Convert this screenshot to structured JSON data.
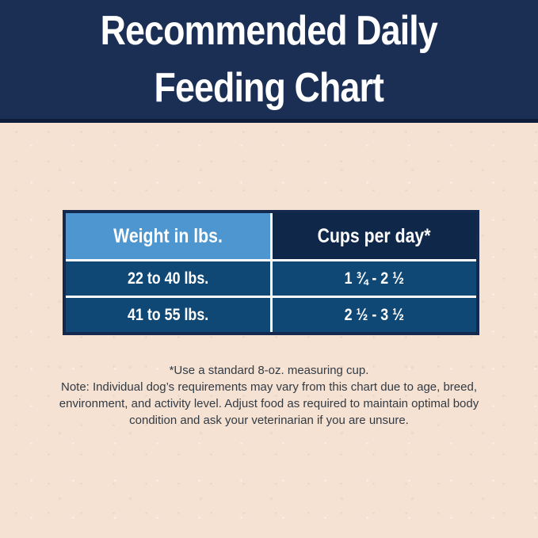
{
  "header": {
    "title_line1": "Recommended Daily",
    "title_line2": "Feeding Chart"
  },
  "chart_data": {
    "type": "table",
    "title": "Recommended Daily Feeding Chart",
    "columns": [
      "Weight in lbs.",
      "Cups per day*"
    ],
    "rows": [
      [
        "22 to 40 lbs.",
        "1 ¾ - 2 ½"
      ],
      [
        "41 to 55 lbs.",
        "2 ½ - 3 ½"
      ]
    ],
    "footnote": "*Use a standard 8-oz. measuring cup."
  },
  "notes": {
    "footnote": "*Use a standard 8-oz. measuring cup.",
    "note_lines": [
      "Note: Individual dog’s requirements may vary from this chart due to age, breed,",
      "environment, and activity level. Adjust food as required to maintain optimal body",
      "condition and ask your veterinarian if you are unsure."
    ]
  },
  "colors": {
    "banner_navy": "#1b2f55",
    "banner_border": "#0d1d3a",
    "header_light_blue": "#4e96cf",
    "header_dark_navy": "#0f2849",
    "row_blue": "#0f4775",
    "gridline_white": "#fbfaf8",
    "table_border_navy": "#13294e",
    "background_beige": "#f5e2d2",
    "note_text": "#323a44",
    "table_text": "#ffffff"
  }
}
